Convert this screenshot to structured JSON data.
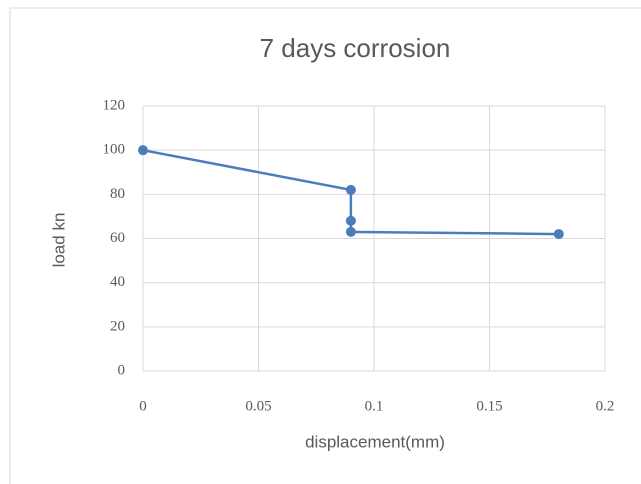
{
  "chart_data": {
    "type": "line",
    "title": "7 days corrosion",
    "x_label": "displacement(mm)",
    "y_label": "load kn",
    "series": [
      {
        "color": "#4a7ebb",
        "x": [
          0,
          0.09,
          0.09,
          0.09,
          0.18
        ],
        "values": [
          100,
          82,
          68,
          63,
          62
        ]
      }
    ],
    "xlim": [
      0,
      0.2
    ],
    "xticks": [
      0,
      0.05,
      0.1,
      0.15,
      0.2
    ],
    "ylim": [
      0,
      120
    ],
    "yticks": [
      0,
      20,
      40,
      60,
      80,
      100,
      120
    ],
    "grid": true
  }
}
